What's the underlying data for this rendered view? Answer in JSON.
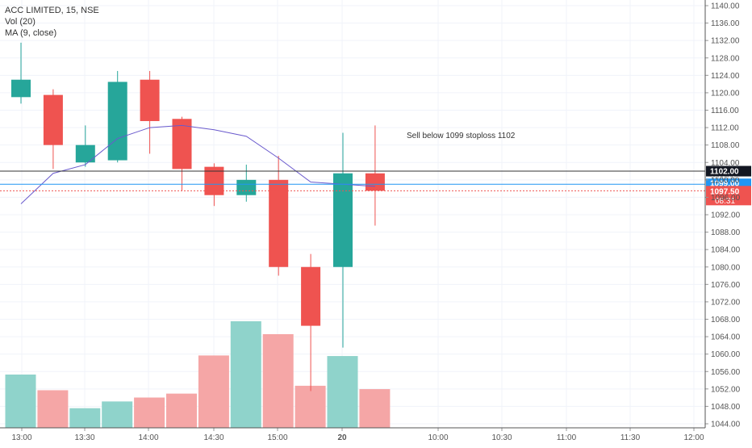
{
  "legend": {
    "symbol": "ACC LIMITED, 15, NSE",
    "vol": "Vol (20)",
    "ma": "MA (9, close)"
  },
  "annotation": "Sell below 1099 stoploss 1102",
  "colors": {
    "up": "#26a69a",
    "down": "#ef5350",
    "up_volume": "#8fd3cb",
    "down_volume": "#f5a6a6",
    "ma": "#6a5acd",
    "line_1102": "#333333",
    "line_1099": "#2196f3",
    "last_price": "#ef5350"
  },
  "chart_data": {
    "type": "candlestick",
    "price_axis": {
      "min": 1044,
      "max": 1140,
      "ticks": [
        "1140.00",
        "1136.00",
        "1132.00",
        "1128.00",
        "1124.00",
        "1120.00",
        "1116.00",
        "1112.00",
        "1108.00",
        "1104.00",
        "1100.00",
        "1096.00",
        "1092.00",
        "1088.00",
        "1084.00",
        "1080.00",
        "1076.00",
        "1072.00",
        "1068.00",
        "1064.00",
        "1060.00",
        "1056.00",
        "1052.00",
        "1048.00",
        "1044.00"
      ]
    },
    "time_axis": {
      "labels": [
        "13:00",
        "13:30",
        "14:00",
        "14:30",
        "15:00",
        "20",
        "10:00",
        "10:30",
        "11:00",
        "11:30",
        "12:00"
      ]
    },
    "candles": [
      {
        "o": 1119,
        "h": 1131.5,
        "l": 1117.5,
        "c": 1123
      },
      {
        "o": 1119.5,
        "h": 1120.8,
        "l": 1102.5,
        "c": 1108
      },
      {
        "o": 1104,
        "h": 1112.5,
        "l": 1103,
        "c": 1108
      },
      {
        "o": 1104.5,
        "h": 1125,
        "l": 1104,
        "c": 1122.5
      },
      {
        "o": 1123,
        "h": 1125,
        "l": 1106,
        "c": 1113.5
      },
      {
        "o": 1114,
        "h": 1114.5,
        "l": 1097.5,
        "c": 1102.5
      },
      {
        "o": 1103,
        "h": 1103.8,
        "l": 1094,
        "c": 1096.5
      },
      {
        "o": 1096.5,
        "h": 1103.5,
        "l": 1095,
        "c": 1100
      },
      {
        "o": 1100,
        "h": 1105.5,
        "l": 1078,
        "c": 1080
      },
      {
        "o": 1080,
        "h": 1083,
        "l": 1051.5,
        "c": 1066.5
      },
      {
        "o": 1080,
        "h": 1110.8,
        "l": 1061.5,
        "c": 1101.5
      },
      {
        "o": 1101.5,
        "h": 1112.5,
        "l": 1089.5,
        "c": 1097.5
      }
    ],
    "volume": [
      0.95,
      0.67,
      0.35,
      0.47,
      0.54,
      0.61,
      1.29,
      1.9,
      1.67,
      0.75,
      1.28,
      0.69
    ],
    "ma": [
      1094.5,
      1101.5,
      1103.5,
      1109.5,
      1112,
      1112.5,
      1111.5,
      1110,
      1105,
      1099.5,
      1099,
      1098.5
    ],
    "price_lines": {
      "line_1102": {
        "price": 1102,
        "label": "1102.00"
      },
      "line_1099": {
        "price": 1099,
        "label": "1099.00",
        "hidden_label": "1100.00"
      },
      "last": {
        "price": 1097.5,
        "label": "1097.50",
        "countdown": "08:31"
      }
    }
  }
}
